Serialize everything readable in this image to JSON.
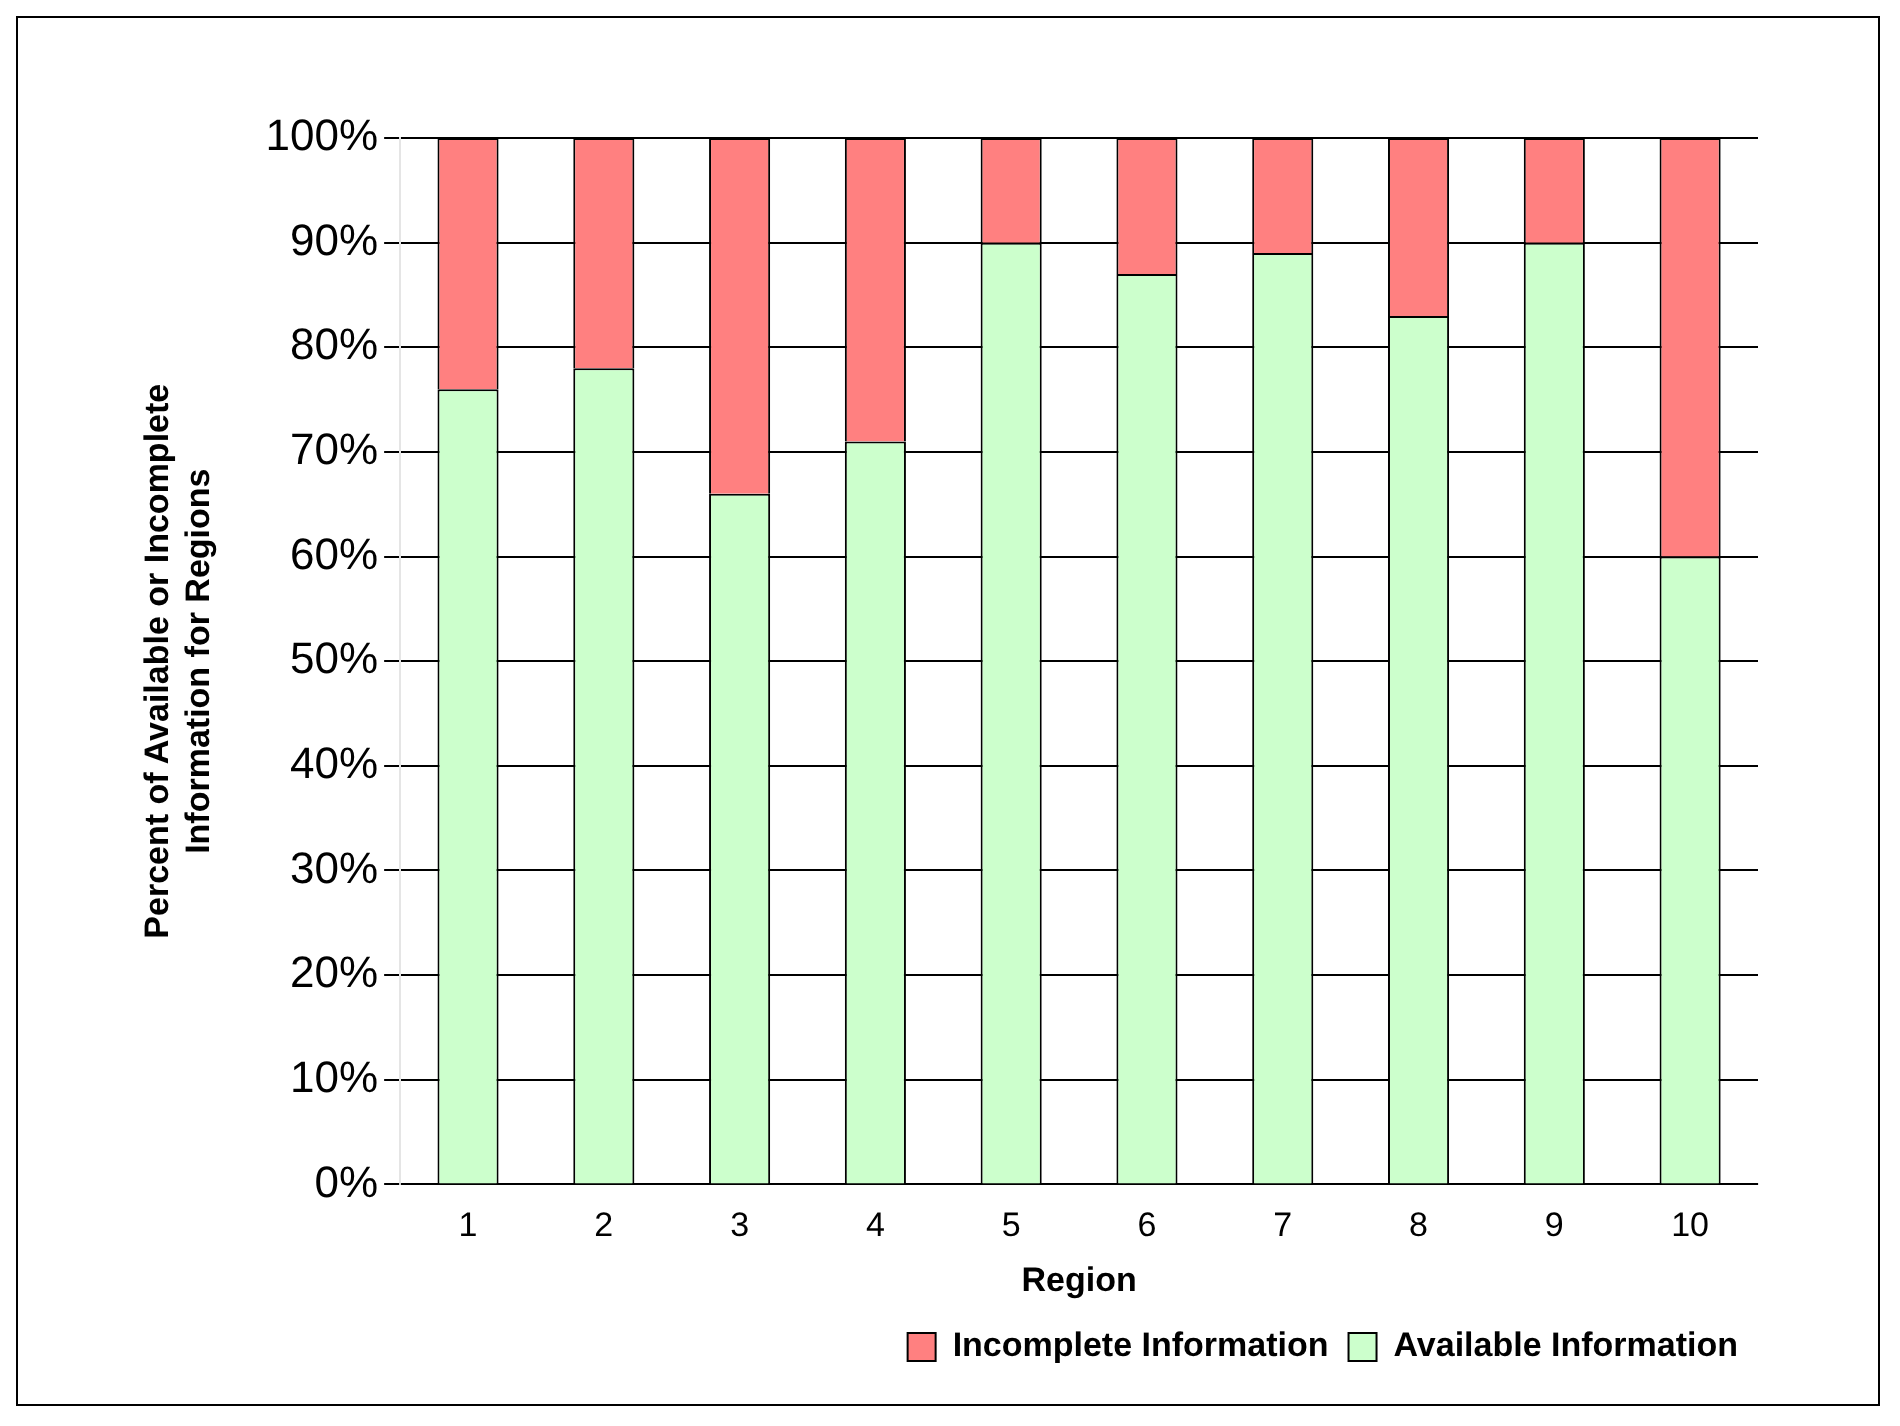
{
  "chart_data": {
    "type": "bar",
    "stacked": true,
    "xlabel": "Region",
    "ylabel": [
      "Percent of Available or Incomplete",
      "Information for Regions"
    ],
    "categories": [
      "1",
      "2",
      "3",
      "4",
      "5",
      "6",
      "7",
      "8",
      "9",
      "10"
    ],
    "series": [
      {
        "name": "Available Information",
        "color": "#ccffcc",
        "values": [
          76,
          78,
          66,
          71,
          90,
          87,
          89,
          83,
          90,
          60
        ]
      },
      {
        "name": "Incomplete Information",
        "color": "#ff8080",
        "values": [
          24,
          22,
          34,
          29,
          10,
          13,
          11,
          17,
          10,
          40
        ]
      }
    ],
    "ylim": [
      0,
      100
    ],
    "yticks": [
      {
        "value": 0,
        "label": "0%"
      },
      {
        "value": 10,
        "label": "10%"
      },
      {
        "value": 20,
        "label": "20%"
      },
      {
        "value": 30,
        "label": "30%"
      },
      {
        "value": 40,
        "label": "40%"
      },
      {
        "value": 50,
        "label": "50%"
      },
      {
        "value": 60,
        "label": "60%"
      },
      {
        "value": 70,
        "label": "70%"
      },
      {
        "value": 80,
        "label": "80%"
      },
      {
        "value": 90,
        "label": "90%"
      },
      {
        "value": 100,
        "label": "100%"
      }
    ],
    "grid": "y",
    "legend": "bottom right"
  }
}
